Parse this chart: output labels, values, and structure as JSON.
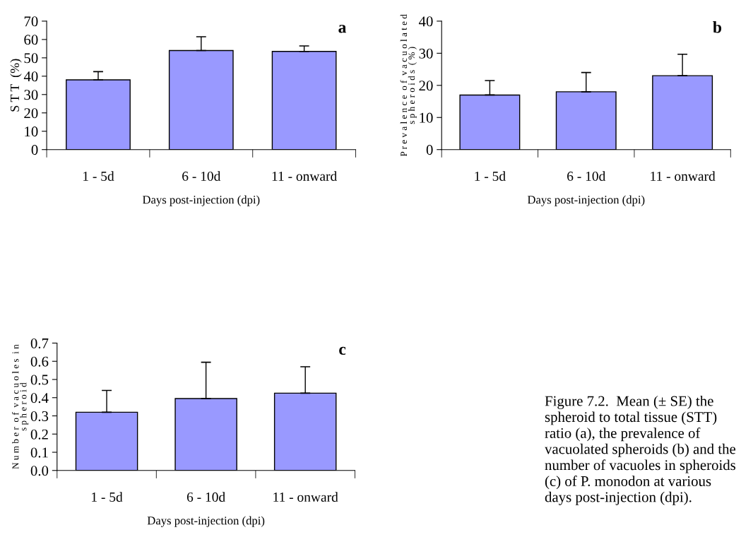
{
  "chart_data": [
    {
      "type": "bar",
      "title": "a",
      "categories": [
        "1 - 5d",
        "6 - 10d",
        "11 - onward"
      ],
      "values": [
        38,
        54,
        53.5
      ],
      "errors": [
        [
          38,
          42.5
        ],
        [
          54,
          61.5
        ],
        [
          53.5,
          56.5
        ]
      ],
      "color": "#9999ff",
      "ylabel": "S T T  (%)",
      "xlabel": "Days post-injection (dpi)",
      "ylim": [
        0,
        70
      ],
      "yticks": [
        0,
        10,
        20,
        30,
        40,
        50,
        60,
        70
      ],
      "grid": false,
      "legend": false
    },
    {
      "type": "bar",
      "title": "b",
      "categories": [
        "1 - 5d",
        "6 - 10d",
        "11 - onward"
      ],
      "values": [
        17,
        18,
        23
      ],
      "errors": [
        [
          17,
          21.5
        ],
        [
          18,
          24
        ],
        [
          23,
          29.7
        ]
      ],
      "color": "#9999ff",
      "ylabel": "P r e v a l e n c e  o f  v a c u o l a t e d\ns p h e r o i d s  ( % )",
      "xlabel": "Days post-injection (dpi)",
      "ylim": [
        0,
        40
      ],
      "yticks": [
        0,
        10,
        20,
        30,
        40
      ],
      "grid": false,
      "legend": false
    },
    {
      "type": "bar",
      "title": "c",
      "categories": [
        "1 - 5d",
        "6 - 10d",
        "11 - onward"
      ],
      "values": [
        0.32,
        0.395,
        0.425
      ],
      "errors": [
        [
          0.32,
          0.44
        ],
        [
          0.395,
          0.595
        ],
        [
          0.425,
          0.57
        ]
      ],
      "color": "#9999ff",
      "ylabel": "N u m b e r  o f  v a c u o l e s  i n\ns p h e r o i d",
      "xlabel": "Days post-injection (dpi)",
      "ylim": [
        0,
        0.7
      ],
      "yticks": [
        {
          "value": 0,
          "label": "0.0"
        },
        0.1,
        0.2,
        0.3,
        0.4,
        0.5,
        0.6,
        0.7
      ],
      "grid": false,
      "legend": false,
      "annotations": [
        "Figure 7.2.  Mean (± SE) the spheroid to total tissue (STT) ratio (a), the prevalence of vacuolated spheroids (b) and the number of vacuoles in spheroids (c) of P. monodon at various days post-injection (dpi)."
      ]
    }
  ]
}
